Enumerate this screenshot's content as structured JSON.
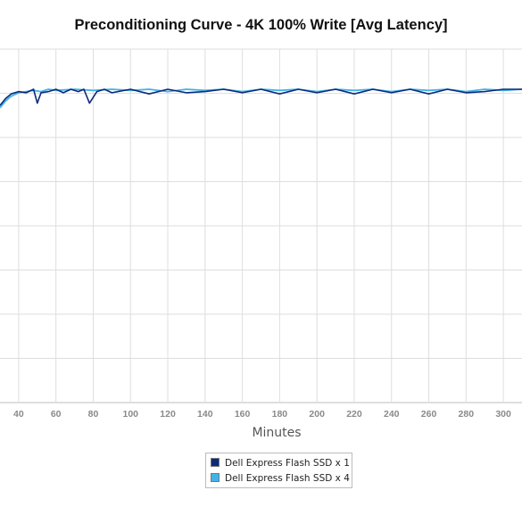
{
  "chart_data": {
    "type": "line",
    "title": "Preconditioning Curve - 4K 100% Write [Avg Latency]",
    "xlabel": "Minutes",
    "ylabel": "",
    "xlim": [
      30,
      310
    ],
    "x_ticks": [
      40,
      60,
      80,
      100,
      120,
      140,
      160,
      180,
      200,
      220,
      240,
      260,
      280,
      300
    ],
    "grid": true,
    "legend_position": "bottom-center",
    "series": [
      {
        "name": "Dell Express Flash SSD x 1",
        "color": "#0b2a7a",
        "x": [
          30,
          33,
          36,
          40,
          44,
          48,
          50,
          52,
          56,
          60,
          64,
          68,
          72,
          75,
          78,
          82,
          86,
          90,
          100,
          110,
          120,
          130,
          140,
          150,
          160,
          170,
          180,
          190,
          200,
          210,
          220,
          230,
          240,
          250,
          260,
          270,
          280,
          290,
          300,
          310
        ],
        "y": [
          0.93,
          0.96,
          0.98,
          0.99,
          0.985,
          1.0,
          0.94,
          0.985,
          0.99,
          1.0,
          0.985,
          1.0,
          0.99,
          1.0,
          0.94,
          0.99,
          1.0,
          0.985,
          1.0,
          0.98,
          1.0,
          0.985,
          0.99,
          1.0,
          0.985,
          1.0,
          0.98,
          1.0,
          0.985,
          1.0,
          0.98,
          1.0,
          0.985,
          1.0,
          0.98,
          1.0,
          0.985,
          0.99,
          1.0,
          1.0
        ]
      },
      {
        "name": "Dell Express Flash SSD x 4",
        "color": "#3fb4ea",
        "x": [
          30,
          33,
          36,
          40,
          44,
          48,
          52,
          56,
          60,
          70,
          80,
          90,
          100,
          110,
          120,
          130,
          140,
          150,
          160,
          170,
          180,
          190,
          200,
          210,
          220,
          230,
          240,
          250,
          260,
          270,
          280,
          290,
          300,
          310
        ],
        "y": [
          0.92,
          0.95,
          0.97,
          0.985,
          0.99,
          0.995,
          0.99,
          1.0,
          0.995,
          1.0,
          0.995,
          1.0,
          0.995,
          1.0,
          0.99,
          1.0,
          0.995,
          1.0,
          0.99,
          1.0,
          0.995,
          1.0,
          0.99,
          1.0,
          0.995,
          1.0,
          0.99,
          1.0,
          0.995,
          1.0,
          0.99,
          1.0,
          0.995,
          1.0
        ]
      }
    ]
  }
}
